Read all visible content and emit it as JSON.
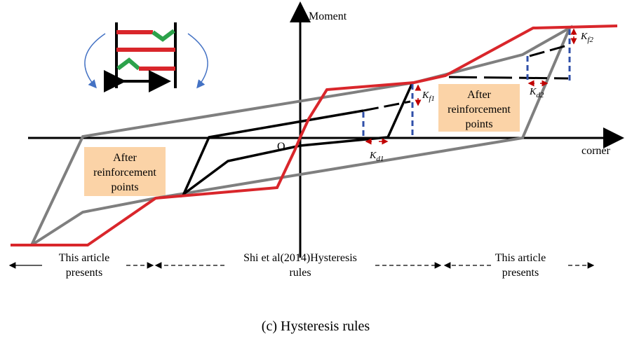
{
  "axes": {
    "y_label": "Moment",
    "x_label": "corner",
    "origin": "O"
  },
  "boxes": [
    {
      "lines": [
        "After",
        "reinforcement",
        "points"
      ]
    },
    {
      "lines": [
        "After",
        "reinforcement",
        "points"
      ]
    }
  ],
  "stiffness_labels": [
    {
      "symbol": "K",
      "subscript": "f1"
    },
    {
      "symbol": "K",
      "subscript": "d1"
    },
    {
      "symbol": "K",
      "subscript": "f2"
    },
    {
      "symbol": "K",
      "subscript": "d2"
    }
  ],
  "ranges": [
    {
      "lines": [
        "This article",
        "presents"
      ]
    },
    {
      "lines": [
        "Shi et al(2014)Hysteresis",
        "rules"
      ]
    },
    {
      "lines": [
        "This article",
        "presents"
      ]
    }
  ],
  "caption": "(c) Hysteresis rules"
}
